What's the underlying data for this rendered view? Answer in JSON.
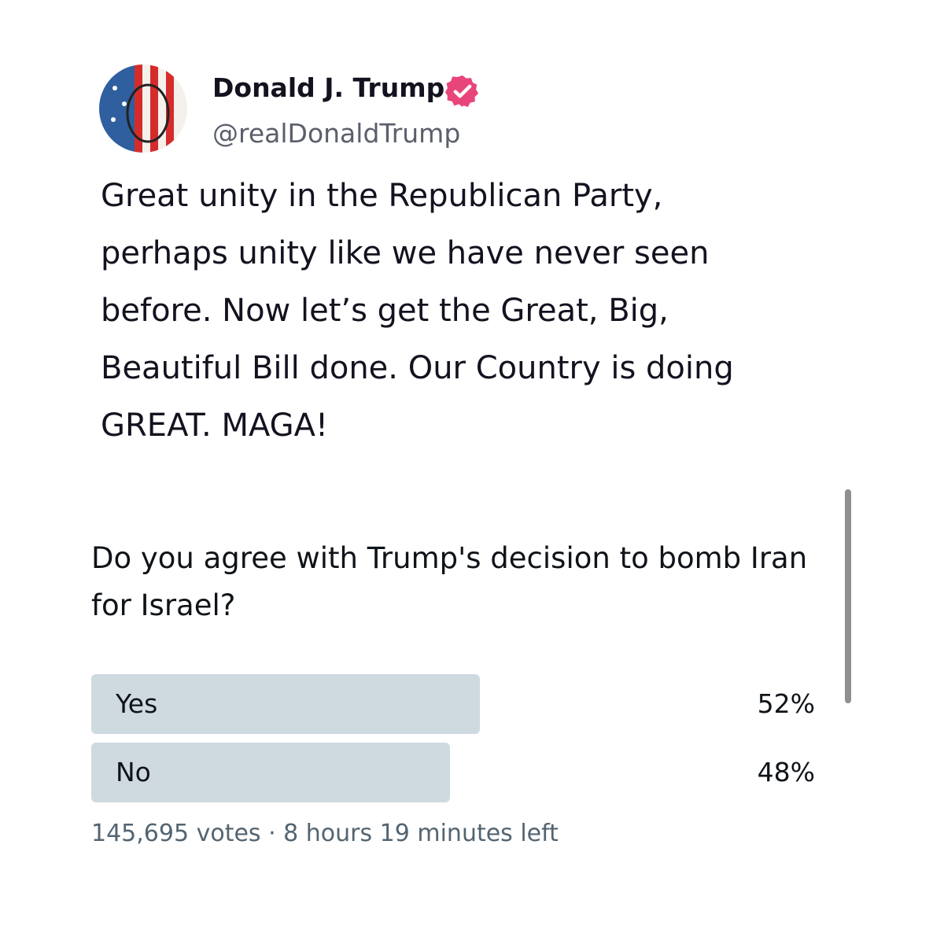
{
  "post": {
    "author": {
      "name": "Donald J. Trump",
      "handle": "@realDonaldTrump"
    },
    "text_lines": [
      "Great unity in the Republican Party,",
      "perhaps unity like we have never seen",
      "before. Now let’s get the Great, Big,",
      "Beautiful Bill done. Our Country is doing",
      "GREAT. MAGA!"
    ]
  },
  "poll": {
    "question_lines": [
      "Do you agree with Trump's decision to bomb Iran",
      "for Israel?"
    ],
    "options": [
      "Yes",
      "No"
    ],
    "values": [
      52,
      48
    ],
    "value_labels": [
      "52%",
      "48%"
    ],
    "footer": "145,695 votes · 8 hours 19 minutes left"
  }
}
